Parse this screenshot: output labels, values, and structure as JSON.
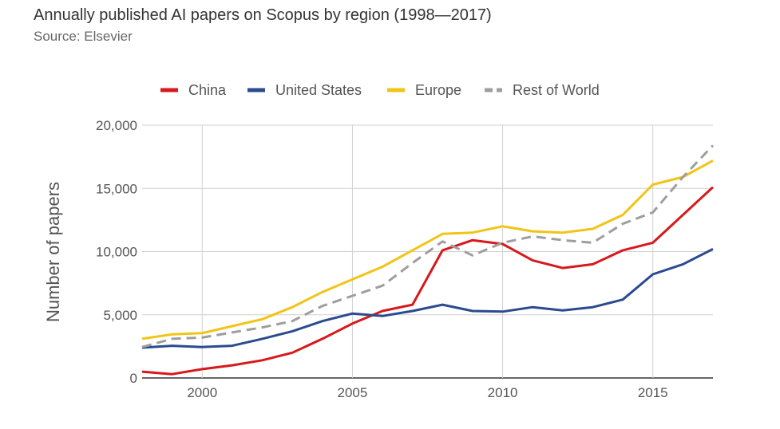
{
  "header": {
    "title": "Annually published AI papers on Scopus by region (1998—2017)",
    "subtitle": "Source: Elsevier"
  },
  "chart_data": {
    "type": "line",
    "title": "Annually published AI papers on Scopus by region (1998—2017)",
    "subtitle": "Source: Elsevier",
    "xlabel": "",
    "ylabel": "Number of papers",
    "x": [
      1998,
      1999,
      2000,
      2001,
      2002,
      2003,
      2004,
      2005,
      2006,
      2007,
      2008,
      2009,
      2010,
      2011,
      2012,
      2013,
      2014,
      2015,
      2016,
      2017
    ],
    "xlim": [
      1998,
      2017
    ],
    "ylim": [
      0,
      20000
    ],
    "xticks": [
      2000,
      2005,
      2010,
      2015
    ],
    "xtick_labels": [
      "2000",
      "2005",
      "2010",
      "2015"
    ],
    "yticks": [
      0,
      5000,
      10000,
      15000,
      20000
    ],
    "ytick_labels": [
      "0",
      "5,000",
      "10,000",
      "15,000",
      "20,000"
    ],
    "grid": true,
    "legend_position": "top",
    "series": [
      {
        "name": "China",
        "color": "#d7191c",
        "dashed": false,
        "values": [
          500,
          300,
          700,
          1000,
          1400,
          2000,
          3100,
          4300,
          5300,
          5800,
          10100,
          10900,
          10600,
          9300,
          8700,
          9000,
          10100,
          10700,
          12900,
          15100
        ]
      },
      {
        "name": "United States",
        "color": "#2b4a8f",
        "dashed": false,
        "values": [
          2400,
          2550,
          2450,
          2550,
          3100,
          3700,
          4500,
          5100,
          4900,
          5300,
          5800,
          5300,
          5250,
          5600,
          5350,
          5600,
          6200,
          8200,
          9000,
          10200
        ]
      },
      {
        "name": "Europe",
        "color": "#f2c417",
        "dashed": false,
        "values": [
          3100,
          3450,
          3550,
          4100,
          4650,
          5600,
          6800,
          7800,
          8800,
          10100,
          11400,
          11500,
          12000,
          11600,
          11500,
          11800,
          12900,
          15300,
          15900,
          17200
        ]
      },
      {
        "name": "Rest of World",
        "color": "#9e9e9e",
        "dashed": true,
        "values": [
          2450,
          3100,
          3200,
          3600,
          4000,
          4500,
          5700,
          6500,
          7300,
          9100,
          10800,
          9700,
          10700,
          11200,
          10900,
          10700,
          12200,
          13100,
          15900,
          18400
        ]
      }
    ]
  }
}
